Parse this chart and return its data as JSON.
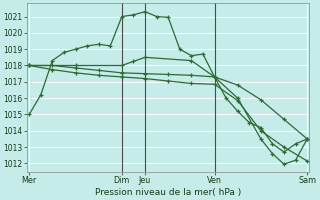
{
  "title": "Pression niveau de la mer( hPa )",
  "background_color": "#c5ece8",
  "grid_color": "#ffffff",
  "line_color": "#2d6a35",
  "ylim": [
    1011.5,
    1021.8
  ],
  "yticks": [
    1012,
    1013,
    1014,
    1015,
    1016,
    1017,
    1018,
    1019,
    1020,
    1021
  ],
  "xlim": [
    -0.2,
    24.2
  ],
  "xtick_labels": [
    "Mer",
    "Dim",
    "Jeu",
    "Ven",
    "Sam"
  ],
  "xtick_positions": [
    0,
    8,
    10,
    16,
    24
  ],
  "vlines_dark": [
    8,
    10,
    16
  ],
  "vlines_edge": [
    0,
    24
  ],
  "line1_x": [
    0,
    1,
    2,
    3,
    4,
    5,
    6,
    7,
    8,
    9,
    10,
    11,
    12,
    13,
    14,
    15,
    16,
    17,
    18,
    19,
    20,
    21,
    22,
    23,
    24
  ],
  "line1_y": [
    1015.0,
    1016.2,
    1018.3,
    1018.8,
    1019.0,
    1019.2,
    1019.3,
    1019.2,
    1021.0,
    1021.1,
    1021.3,
    1021.0,
    1020.95,
    1019.0,
    1018.6,
    1018.7,
    1017.3,
    1016.0,
    1015.2,
    1014.5,
    1014.2,
    1013.2,
    1012.7,
    1013.2,
    1013.5
  ],
  "line2_x": [
    0,
    2,
    4,
    6,
    8,
    10,
    12,
    14,
    16,
    18,
    20,
    22,
    24
  ],
  "line2_y": [
    1018.0,
    1018.0,
    1017.85,
    1017.7,
    1017.55,
    1017.5,
    1017.45,
    1017.4,
    1017.3,
    1016.8,
    1015.9,
    1014.7,
    1013.5
  ],
  "line3_x": [
    0,
    2,
    4,
    6,
    8,
    10,
    12,
    14,
    16,
    18,
    20,
    22,
    24
  ],
  "line3_y": [
    1018.0,
    1017.75,
    1017.55,
    1017.4,
    1017.3,
    1017.2,
    1017.05,
    1016.9,
    1016.85,
    1015.85,
    1014.0,
    1013.0,
    1012.15
  ],
  "line4_x": [
    0,
    4,
    8,
    9,
    10,
    14,
    16,
    18,
    20,
    21,
    22,
    23,
    24
  ],
  "line4_y": [
    1018.0,
    1018.0,
    1018.0,
    1018.25,
    1018.5,
    1018.3,
    1017.3,
    1016.0,
    1013.5,
    1012.6,
    1011.95,
    1012.2,
    1013.5
  ]
}
